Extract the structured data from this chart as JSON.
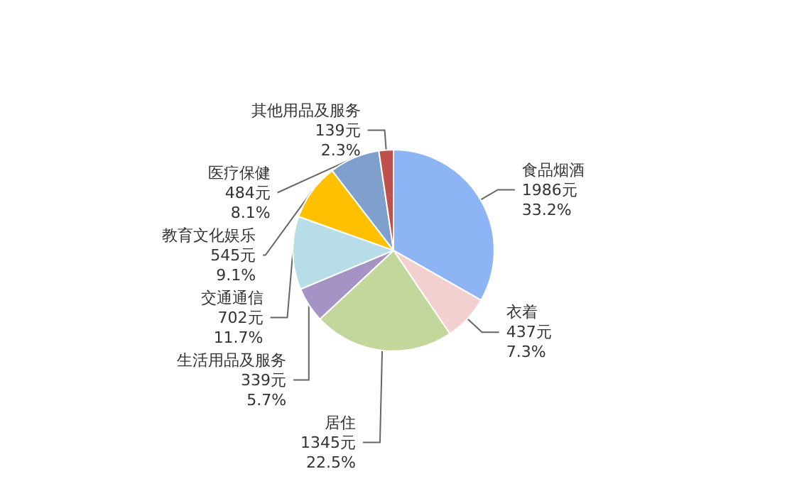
{
  "chart_data": {
    "type": "pie",
    "categories": [
      "食品烟酒",
      "衣着",
      "居住",
      "生活用品及服务",
      "交通通信",
      "教育文化娱乐",
      "医疗保健",
      "其他用品及服务"
    ],
    "values": [
      1986,
      437,
      1345,
      339,
      702,
      545,
      484,
      139
    ],
    "value_labels": [
      "1986元\n33.2%",
      "437元\n7.3%",
      "1345元\n22.5%",
      "339元\n5.7%",
      "702元\n11.7%",
      "545元\n9.1%",
      "484元\n8.1%",
      "139元\n2.3%"
    ],
    "colors": [
      "#8db4f5",
      "#f2d0d0",
      "#c3d69b",
      "#a593c6",
      "#b7dde8",
      "#ffc000",
      "#7f9fcc",
      "#c0504d"
    ],
    "legend": false
  }
}
